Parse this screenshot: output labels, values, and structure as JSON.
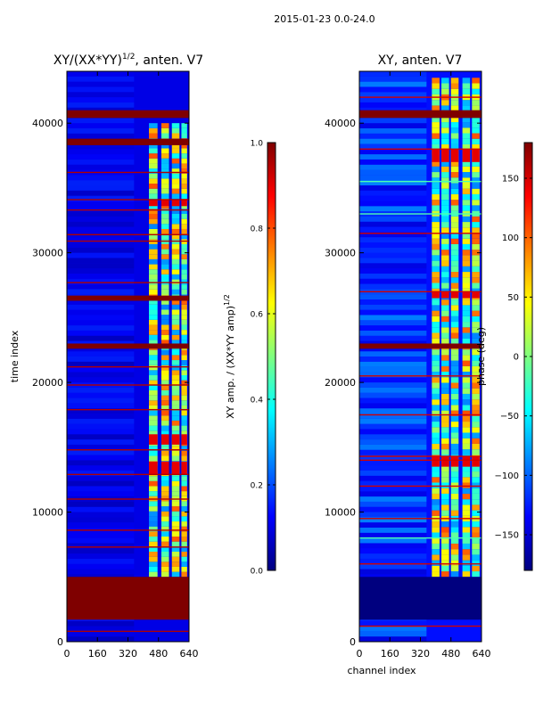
{
  "suptitle": "2015-01-23 0.0-24.0",
  "colormap": "jet",
  "colors": {
    "cmap_stops": [
      "#00007f",
      "#0000ff",
      "#007fff",
      "#00ffff",
      "#7fff7f",
      "#ffff00",
      "#ff7f00",
      "#ff0000",
      "#7f0000"
    ],
    "background": "#ffffff",
    "axis": "#000000"
  },
  "chart_data": [
    {
      "type": "heatmap",
      "title": "XY/(XX*YY)",
      "title_exponent": "1/2",
      "title_suffix": ", anten. V7",
      "xlabel": "",
      "ylabel": "time index",
      "xlim": [
        0,
        640
      ],
      "ylim": [
        0,
        44000
      ],
      "xticks": [
        0,
        160,
        320,
        480,
        640
      ],
      "xtick_labels": [
        "0",
        "160",
        "320",
        "480",
        "640"
      ],
      "yticks": [
        0,
        10000,
        20000,
        30000,
        40000
      ],
      "ytick_labels": [
        "0",
        "10000",
        "20000",
        "30000",
        "40000"
      ],
      "background_value": 0.1,
      "saturated_bands": [
        [
          1700,
          5000
        ],
        [
          22600,
          23000
        ],
        [
          26300,
          26700
        ],
        [
          38300,
          38800
        ],
        [
          40400,
          41000
        ]
      ],
      "stripe_rows": [
        800,
        7300,
        8600,
        11000,
        12900,
        14800,
        17900,
        19800,
        21200,
        27700,
        30900,
        31400,
        33300,
        34100,
        36200
      ],
      "patch_columns": [
        [
          430,
          475
        ],
        [
          495,
          535
        ],
        [
          550,
          590
        ],
        [
          600,
          630
        ]
      ],
      "patch_ranges": [
        [
          5000,
          40000
        ]
      ],
      "hot_block_ranges": [
        [
          12900,
          13900
        ],
        [
          15200,
          16000
        ],
        [
          33600,
          34100
        ]
      ],
      "colorbar": {
        "label": "XY amp. / (XX*YY amp)",
        "label_exponent": "1/2",
        "range": [
          0.0,
          1.0
        ],
        "ticks": [
          0.0,
          0.2,
          0.4,
          0.6,
          0.8,
          1.0
        ],
        "tick_labels": [
          "0.0",
          "0.2",
          "0.4",
          "0.6",
          "0.8",
          "1.0"
        ]
      }
    },
    {
      "type": "heatmap",
      "title": "XY, anten. V7",
      "xlabel": "channel index",
      "ylabel": "",
      "xlim": [
        0,
        640
      ],
      "ylim": [
        0,
        44000
      ],
      "xticks": [
        0,
        160,
        320,
        480,
        640
      ],
      "xtick_labels": [
        "0",
        "160",
        "320",
        "480",
        "640"
      ],
      "yticks": [
        0,
        10000,
        20000,
        30000,
        40000
      ],
      "ytick_labels": [
        "0",
        "10000",
        "20000",
        "30000",
        "40000"
      ],
      "background_value": -130,
      "saturated_bands": [
        [
          1700,
          5000
        ],
        [
          22600,
          23000
        ],
        [
          40400,
          41000
        ]
      ],
      "stripe_rows": [
        1200,
        6000,
        8000,
        9500,
        12000,
        14000,
        14300,
        17500,
        20500,
        27000,
        31500,
        33000,
        35500,
        38000,
        42000
      ],
      "patch_columns": [
        [
          380,
          420
        ],
        [
          430,
          470
        ],
        [
          480,
          520
        ],
        [
          540,
          580
        ],
        [
          590,
          630
        ]
      ],
      "patch_ranges": [
        [
          5000,
          43500
        ]
      ],
      "hot_block_ranges": [
        [
          13500,
          14300
        ],
        [
          26500,
          27000
        ],
        [
          37000,
          38000
        ]
      ],
      "colorbar": {
        "label": "phase (deg)",
        "range": [
          -180,
          180
        ],
        "ticks": [
          -150,
          -100,
          -50,
          0,
          50,
          100,
          150
        ],
        "tick_labels": [
          "−150",
          "−100",
          "−50",
          "0",
          "50",
          "100",
          "150"
        ]
      }
    }
  ]
}
